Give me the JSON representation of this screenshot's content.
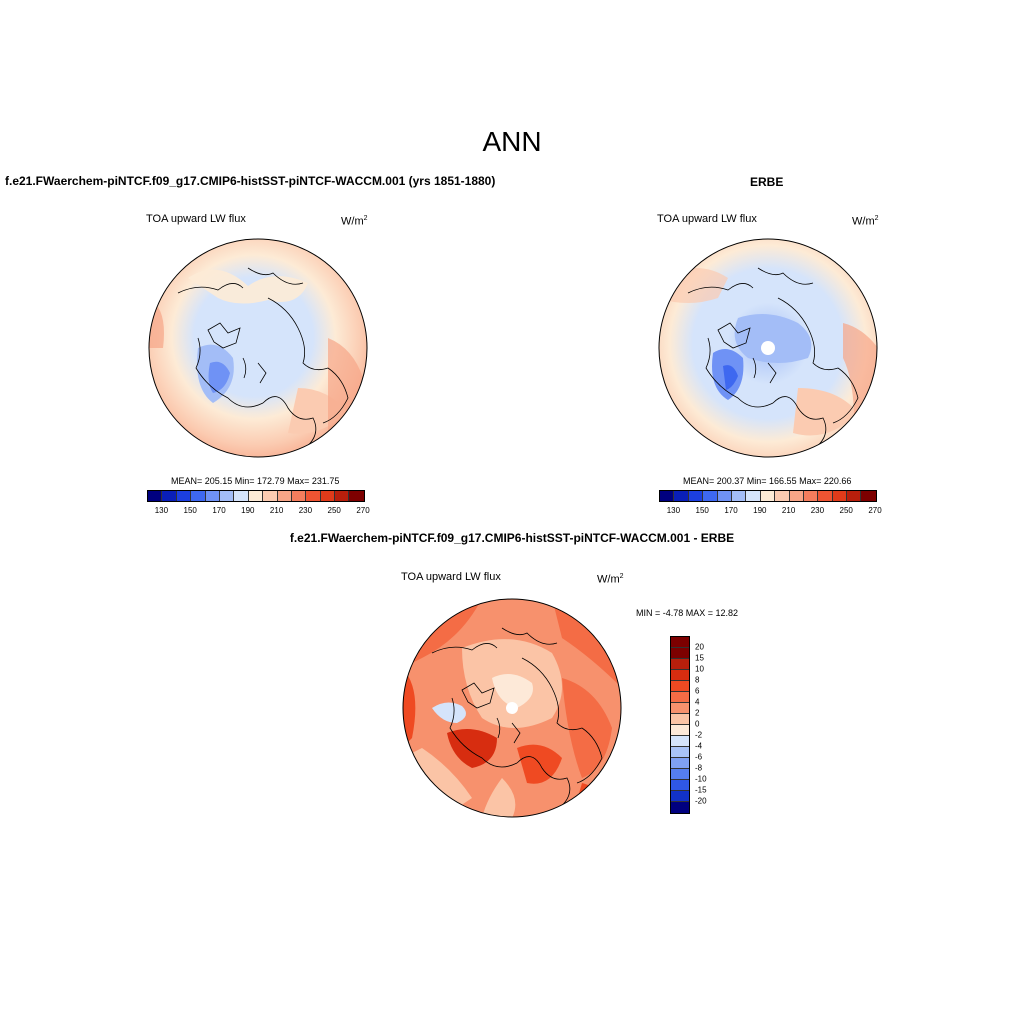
{
  "main_title": "ANN",
  "panels": {
    "model": {
      "title": "f.e21.FWaerchem-piNTCF.f09_g17.CMIP6-histSST-piNTCF-WACCM.001 (yrs 1851-1880)",
      "variable": "TOA upward LW flux",
      "units": "W/m",
      "units_exp": "2",
      "stats": "MEAN= 205.15  Min= 172.79  Max= 231.75",
      "colorbar_labels": [
        "130",
        "150",
        "170",
        "190",
        "210",
        "230",
        "250",
        "270"
      ]
    },
    "obs": {
      "title": "ERBE",
      "variable": "TOA upward LW flux",
      "units": "W/m",
      "units_exp": "2",
      "stats": "MEAN= 200.37  Min= 166.55  Max= 220.66",
      "colorbar_labels": [
        "130",
        "150",
        "170",
        "190",
        "210",
        "230",
        "250",
        "270"
      ]
    },
    "diff": {
      "title": "f.e21.FWaerchem-piNTCF.f09_g17.CMIP6-histSST-piNTCF-WACCM.001 - ERBE",
      "variable": "TOA upward LW flux",
      "units": "W/m",
      "units_exp": "2",
      "stats": "MIN =  -4.78 MAX =  12.82",
      "colorbar_labels": [
        "20",
        "15",
        "10",
        "8",
        "6",
        "4",
        "2",
        "0",
        "-2",
        "-4",
        "-6",
        "-8",
        "-10",
        "-15",
        "-20"
      ]
    }
  },
  "colors": {
    "abs_scale": [
      "#00007f",
      "#0a1fb8",
      "#1c3fe0",
      "#3e68f0",
      "#6f92f5",
      "#a3bdf7",
      "#d5e4fb",
      "#fdebd6",
      "#fbcbb1",
      "#f7a587",
      "#f47d5d",
      "#ef5432",
      "#e03b1a",
      "#b81f0c",
      "#7d0000"
    ],
    "diff_scale": [
      "#7d0000",
      "#b81f0c",
      "#d72d10",
      "#ef4a22",
      "#f46c45",
      "#f7916d",
      "#fbc4a6",
      "#fde9d8",
      "#d5e4fb",
      "#a9c3f7",
      "#7fa0f3",
      "#557ef0",
      "#2f57e6",
      "#1232c8",
      "#00007f"
    ]
  }
}
